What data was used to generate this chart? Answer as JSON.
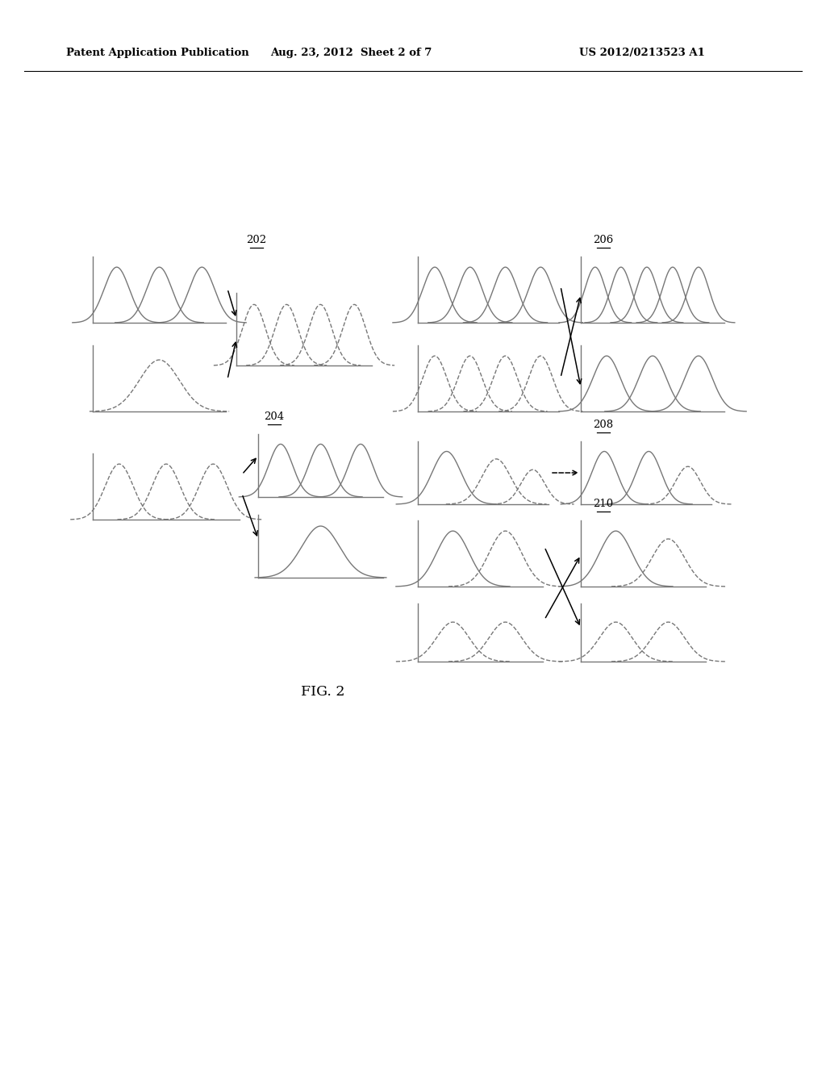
{
  "background_color": "#ffffff",
  "header_left": "Patent Application Publication",
  "header_center": "Aug. 23, 2012  Sheet 2 of 7",
  "header_right": "US 2012/0213523 A1",
  "fig_label": "FIG. 2",
  "lc": "#777777",
  "lw": 1.0
}
